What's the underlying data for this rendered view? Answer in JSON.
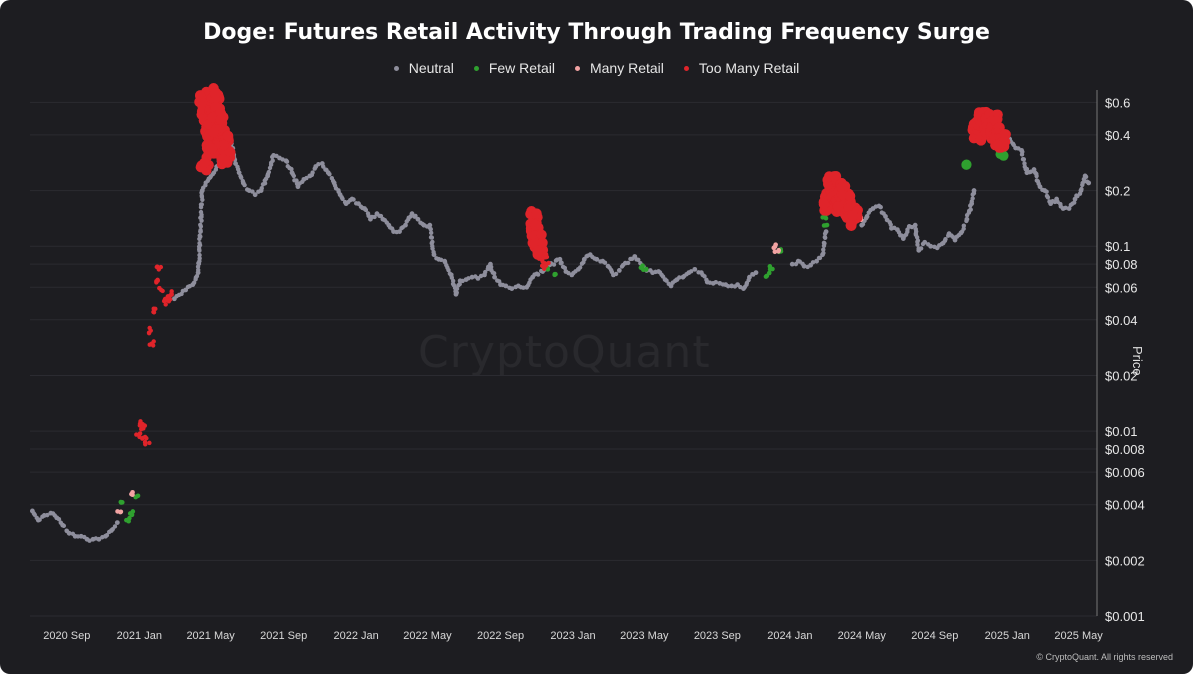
{
  "chart_data": {
    "type": "scatter",
    "title": "Doge: Futures Retail Activity Through Trading Frequency Surge",
    "ylabel": "Price",
    "yscale": "log",
    "ylim": [
      0.001,
      0.7
    ],
    "xlim": [
      "2020-07-01",
      "2025-06-01"
    ],
    "legend_position": "top-center",
    "grid": "horizontal",
    "y_ticks": [
      {
        "v": 0.6,
        "label": "$0.6"
      },
      {
        "v": 0.4,
        "label": "$0.4"
      },
      {
        "v": 0.2,
        "label": "$0.2"
      },
      {
        "v": 0.1,
        "label": "$0.1"
      },
      {
        "v": 0.08,
        "label": "$0.08"
      },
      {
        "v": 0.06,
        "label": "$0.06"
      },
      {
        "v": 0.04,
        "label": "$0.04"
      },
      {
        "v": 0.02,
        "label": "$0.02"
      },
      {
        "v": 0.01,
        "label": "$0.01"
      },
      {
        "v": 0.008,
        "label": "$0.008"
      },
      {
        "v": 0.006,
        "label": "$0.006"
      },
      {
        "v": 0.004,
        "label": "$0.004"
      },
      {
        "v": 0.002,
        "label": "$0.002"
      },
      {
        "v": 0.001,
        "label": "$0.001"
      }
    ],
    "x_ticks": [
      {
        "d": "2020-09-01",
        "label": "2020 Sep"
      },
      {
        "d": "2021-01-01",
        "label": "2021 Jan"
      },
      {
        "d": "2021-05-01",
        "label": "2021 May"
      },
      {
        "d": "2021-09-01",
        "label": "2021 Sep"
      },
      {
        "d": "2022-01-01",
        "label": "2022 Jan"
      },
      {
        "d": "2022-05-01",
        "label": "2022 May"
      },
      {
        "d": "2022-09-01",
        "label": "2022 Sep"
      },
      {
        "d": "2023-01-01",
        "label": "2023 Jan"
      },
      {
        "d": "2023-05-01",
        "label": "2023 May"
      },
      {
        "d": "2023-09-01",
        "label": "2023 Sep"
      },
      {
        "d": "2024-01-01",
        "label": "2024 Jan"
      },
      {
        "d": "2024-05-01",
        "label": "2024 May"
      },
      {
        "d": "2024-09-01",
        "label": "2024 Sep"
      },
      {
        "d": "2025-01-01",
        "label": "2025 Jan"
      },
      {
        "d": "2025-05-01",
        "label": "2025 May"
      }
    ],
    "series": [
      {
        "name": "Neutral",
        "color": "#8e8e9c",
        "points": [
          [
            "2020-07-05",
            0.0037
          ],
          [
            "2020-07-15",
            0.0033
          ],
          [
            "2020-07-25",
            0.0035
          ],
          [
            "2020-08-05",
            0.0036
          ],
          [
            "2020-08-15",
            0.0034
          ],
          [
            "2020-08-25",
            0.0031
          ],
          [
            "2020-09-05",
            0.0028
          ],
          [
            "2020-09-15",
            0.0027
          ],
          [
            "2020-09-25",
            0.0027
          ],
          [
            "2020-10-05",
            0.0026
          ],
          [
            "2020-10-15",
            0.0026
          ],
          [
            "2020-10-25",
            0.0026
          ],
          [
            "2020-11-05",
            0.0027
          ],
          [
            "2020-11-15",
            0.0029
          ],
          [
            "2020-11-25",
            0.0032
          ],
          [
            "2021-03-01",
            0.052
          ],
          [
            "2021-03-20",
            0.058
          ],
          [
            "2021-04-01",
            0.062
          ],
          [
            "2021-04-10",
            0.072
          ],
          [
            "2021-04-14",
            0.12
          ],
          [
            "2021-04-17",
            0.2
          ],
          [
            "2021-06-05",
            0.36
          ],
          [
            "2021-06-12",
            0.28
          ],
          [
            "2021-06-18",
            0.25
          ],
          [
            "2021-06-25",
            0.22
          ],
          [
            "2021-07-05",
            0.2
          ],
          [
            "2021-07-15",
            0.19
          ],
          [
            "2021-07-25",
            0.2
          ],
          [
            "2021-08-05",
            0.24
          ],
          [
            "2021-08-15",
            0.31
          ],
          [
            "2021-08-25",
            0.3
          ],
          [
            "2021-09-05",
            0.29
          ],
          [
            "2021-09-15",
            0.25
          ],
          [
            "2021-09-25",
            0.21
          ],
          [
            "2021-10-05",
            0.23
          ],
          [
            "2021-10-15",
            0.24
          ],
          [
            "2021-10-25",
            0.27
          ],
          [
            "2021-11-05",
            0.28
          ],
          [
            "2021-11-15",
            0.25
          ],
          [
            "2021-11-25",
            0.22
          ],
          [
            "2021-12-05",
            0.19
          ],
          [
            "2021-12-15",
            0.17
          ],
          [
            "2021-12-25",
            0.18
          ],
          [
            "2022-01-05",
            0.17
          ],
          [
            "2022-01-15",
            0.16
          ],
          [
            "2022-01-25",
            0.14
          ],
          [
            "2022-02-05",
            0.15
          ],
          [
            "2022-02-15",
            0.14
          ],
          [
            "2022-02-25",
            0.13
          ],
          [
            "2022-03-05",
            0.12
          ],
          [
            "2022-03-15",
            0.12
          ],
          [
            "2022-03-25",
            0.13
          ],
          [
            "2022-04-05",
            0.15
          ],
          [
            "2022-04-15",
            0.14
          ],
          [
            "2022-04-25",
            0.13
          ],
          [
            "2022-05-05",
            0.13
          ],
          [
            "2022-05-12",
            0.09
          ],
          [
            "2022-05-20",
            0.085
          ],
          [
            "2022-05-30",
            0.083
          ],
          [
            "2022-06-10",
            0.07
          ],
          [
            "2022-06-18",
            0.055
          ],
          [
            "2022-06-25",
            0.065
          ],
          [
            "2022-07-05",
            0.066
          ],
          [
            "2022-07-15",
            0.068
          ],
          [
            "2022-07-25",
            0.067
          ],
          [
            "2022-08-05",
            0.07
          ],
          [
            "2022-08-15",
            0.08
          ],
          [
            "2022-08-22",
            0.068
          ],
          [
            "2022-09-01",
            0.062
          ],
          [
            "2022-09-10",
            0.061
          ],
          [
            "2022-09-20",
            0.059
          ],
          [
            "2022-10-01",
            0.061
          ],
          [
            "2022-10-15",
            0.06
          ],
          [
            "2022-10-25",
            0.068
          ],
          [
            "2022-12-10",
            0.085
          ],
          [
            "2022-12-20",
            0.073
          ],
          [
            "2022-12-30",
            0.07
          ],
          [
            "2023-01-10",
            0.075
          ],
          [
            "2023-01-20",
            0.085
          ],
          [
            "2023-01-30",
            0.09
          ],
          [
            "2023-02-10",
            0.085
          ],
          [
            "2023-02-20",
            0.083
          ],
          [
            "2023-03-01",
            0.078
          ],
          [
            "2023-03-10",
            0.07
          ],
          [
            "2023-03-20",
            0.074
          ],
          [
            "2023-03-30",
            0.081
          ],
          [
            "2023-04-15",
            0.088
          ],
          [
            "2023-05-05",
            0.074
          ],
          [
            "2023-05-15",
            0.072
          ],
          [
            "2023-05-25",
            0.073
          ],
          [
            "2023-06-05",
            0.066
          ],
          [
            "2023-06-15",
            0.061
          ],
          [
            "2023-06-25",
            0.066
          ],
          [
            "2023-07-05",
            0.068
          ],
          [
            "2023-07-15",
            0.072
          ],
          [
            "2023-07-25",
            0.075
          ],
          [
            "2023-08-05",
            0.072
          ],
          [
            "2023-08-15",
            0.064
          ],
          [
            "2023-08-25",
            0.063
          ],
          [
            "2023-09-05",
            0.063
          ],
          [
            "2023-09-15",
            0.062
          ],
          [
            "2023-09-25",
            0.061
          ],
          [
            "2023-10-05",
            0.062
          ],
          [
            "2023-10-15",
            0.059
          ],
          [
            "2023-10-25",
            0.068
          ],
          [
            "2023-11-05",
            0.072
          ],
          [
            "2024-01-05",
            0.08
          ],
          [
            "2024-01-15",
            0.083
          ],
          [
            "2024-01-25",
            0.078
          ],
          [
            "2024-02-05",
            0.079
          ],
          [
            "2024-02-15",
            0.083
          ],
          [
            "2024-02-25",
            0.09
          ],
          [
            "2024-03-02",
            0.12
          ],
          [
            "2024-05-01",
            0.13
          ],
          [
            "2024-05-10",
            0.145
          ],
          [
            "2024-05-20",
            0.16
          ],
          [
            "2024-05-30",
            0.165
          ],
          [
            "2024-06-10",
            0.145
          ],
          [
            "2024-06-20",
            0.125
          ],
          [
            "2024-06-30",
            0.123
          ],
          [
            "2024-07-10",
            0.11
          ],
          [
            "2024-07-20",
            0.128
          ],
          [
            "2024-07-30",
            0.13
          ],
          [
            "2024-08-05",
            0.095
          ],
          [
            "2024-08-15",
            0.105
          ],
          [
            "2024-08-25",
            0.1
          ],
          [
            "2024-09-05",
            0.098
          ],
          [
            "2024-09-15",
            0.104
          ],
          [
            "2024-09-25",
            0.117
          ],
          [
            "2024-10-05",
            0.108
          ],
          [
            "2024-10-15",
            0.118
          ],
          [
            "2024-10-25",
            0.14
          ],
          [
            "2024-11-02",
            0.17
          ],
          [
            "2024-11-06",
            0.2
          ],
          [
            "2025-01-05",
            0.38
          ],
          [
            "2025-01-15",
            0.34
          ],
          [
            "2025-01-25",
            0.33
          ],
          [
            "2025-02-03",
            0.25
          ],
          [
            "2025-02-15",
            0.26
          ],
          [
            "2025-02-25",
            0.21
          ],
          [
            "2025-03-05",
            0.2
          ],
          [
            "2025-03-15",
            0.17
          ],
          [
            "2025-03-25",
            0.18
          ],
          [
            "2025-04-05",
            0.16
          ],
          [
            "2025-04-15",
            0.16
          ],
          [
            "2025-04-25",
            0.18
          ],
          [
            "2025-05-05",
            0.2
          ],
          [
            "2025-05-12",
            0.24
          ],
          [
            "2025-05-18",
            0.22
          ]
        ]
      },
      {
        "name": "Few Retail",
        "color": "#2fa02f",
        "points": [
          [
            "2020-12-01",
            0.0042
          ],
          [
            "2020-12-12",
            0.0033
          ],
          [
            "2020-12-20",
            0.0036
          ],
          [
            "2020-12-28",
            0.0045
          ],
          [
            "2022-11-22",
            0.075
          ],
          [
            "2022-11-30",
            0.069
          ],
          [
            "2023-04-25",
            0.078
          ],
          [
            "2023-05-01",
            0.075
          ],
          [
            "2023-11-25",
            0.07
          ],
          [
            "2023-12-01",
            0.076
          ],
          [
            "2023-12-15",
            0.095
          ],
          [
            "2024-02-28",
            0.145
          ],
          [
            "2024-03-01",
            0.13
          ],
          [
            "2024-10-25",
            0.27
          ],
          [
            "2024-12-20",
            0.32
          ],
          [
            "2024-12-28",
            0.31
          ]
        ]
      },
      {
        "name": "Many Retail",
        "color": "#f2a3a3",
        "points": [
          [
            "2020-11-28",
            0.0036
          ],
          [
            "2020-12-22",
            0.0046
          ],
          [
            "2023-12-05",
            0.1
          ],
          [
            "2023-12-10",
            0.095
          ],
          [
            "2024-04-25",
            0.16
          ],
          [
            "2024-04-28",
            0.14
          ]
        ]
      },
      {
        "name": "Too Many Retail",
        "color": "#e0242a",
        "points": [
          [
            "2020-12-30",
            0.0095
          ],
          [
            "2021-01-03",
            0.011
          ],
          [
            "2021-01-07",
            0.0105
          ],
          [
            "2021-01-10",
            0.009
          ],
          [
            "2021-01-14",
            0.0085
          ],
          [
            "2021-01-20",
            0.035
          ],
          [
            "2021-01-24",
            0.045
          ],
          [
            "2021-01-28",
            0.065
          ],
          [
            "2021-02-03",
            0.075
          ],
          [
            "2021-02-07",
            0.058
          ],
          [
            "2021-02-12",
            0.05
          ],
          [
            "2021-02-18",
            0.052
          ],
          [
            "2021-02-22",
            0.055
          ],
          [
            "2021-01-22",
            0.03
          ],
          [
            "2021-04-20",
            0.62
          ],
          [
            "2021-04-24",
            0.55
          ],
          [
            "2021-04-28",
            0.45
          ],
          [
            "2021-05-02",
            0.38
          ],
          [
            "2021-05-05",
            0.5
          ],
          [
            "2021-05-08",
            0.58
          ],
          [
            "2021-05-10",
            0.65
          ],
          [
            "2021-05-13",
            0.42
          ],
          [
            "2021-05-16",
            0.48
          ],
          [
            "2021-05-18",
            0.35
          ],
          [
            "2021-05-20",
            0.4
          ],
          [
            "2021-05-23",
            0.33
          ],
          [
            "2021-05-26",
            0.3
          ],
          [
            "2021-05-29",
            0.36
          ],
          [
            "2021-04-22",
            0.28
          ],
          [
            "2021-05-01",
            0.32
          ],
          [
            "2021-05-06",
            0.42
          ],
          [
            "2021-05-11",
            0.52
          ],
          [
            "2022-10-27",
            0.14
          ],
          [
            "2022-10-30",
            0.12
          ],
          [
            "2022-11-02",
            0.105
          ],
          [
            "2022-11-05",
            0.095
          ],
          [
            "2022-11-09",
            0.085
          ],
          [
            "2022-11-12",
            0.078
          ],
          [
            "2022-11-15",
            0.09
          ],
          [
            "2022-11-18",
            0.08
          ],
          [
            "2024-03-05",
            0.17
          ],
          [
            "2024-03-09",
            0.21
          ],
          [
            "2024-03-13",
            0.22
          ],
          [
            "2024-03-17",
            0.19
          ],
          [
            "2024-03-21",
            0.175
          ],
          [
            "2024-03-25",
            0.16
          ],
          [
            "2024-03-29",
            0.18
          ],
          [
            "2024-04-03",
            0.2
          ],
          [
            "2024-04-07",
            0.17
          ],
          [
            "2024-04-12",
            0.155
          ],
          [
            "2024-04-16",
            0.15
          ],
          [
            "2024-04-20",
            0.14
          ],
          [
            "2024-11-10",
            0.4
          ],
          [
            "2024-11-14",
            0.44
          ],
          [
            "2024-11-18",
            0.48
          ],
          [
            "2024-11-22",
            0.5
          ],
          [
            "2024-11-26",
            0.46
          ],
          [
            "2024-11-30",
            0.42
          ],
          [
            "2024-12-04",
            0.45
          ],
          [
            "2024-12-08",
            0.47
          ],
          [
            "2024-12-12",
            0.44
          ],
          [
            "2024-12-16",
            0.4
          ],
          [
            "2024-12-20",
            0.37
          ],
          [
            "2024-12-24",
            0.38
          ]
        ]
      }
    ]
  },
  "watermark": "CryptoQuant",
  "copyright": "© CryptoQuant. All rights reserved"
}
